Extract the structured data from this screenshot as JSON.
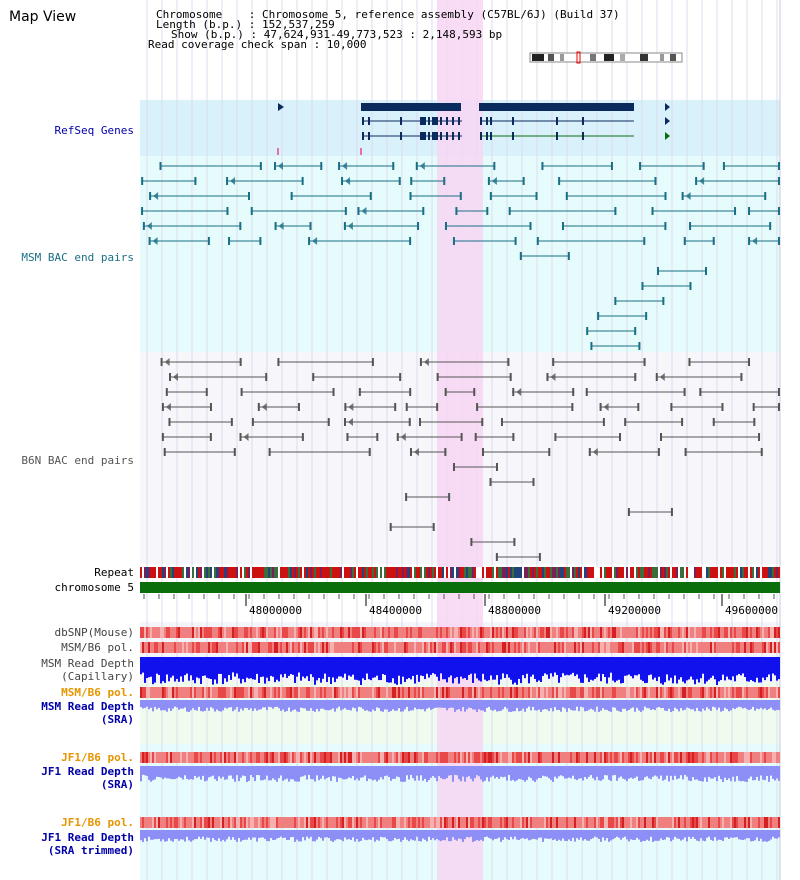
{
  "app": {
    "title": "Map View"
  },
  "info": {
    "chromosome": "Chromosome    : Chromosome 5, reference assembly (C57BL/6J) (Build 37)",
    "length": "Length (b.p.) : 152,537,259",
    "show": "Show (b.p.) : 47,624,931-49,773,523 : 2,148,593 bp",
    "coverage": "Read coverage check span : 10,000"
  },
  "tracks": {
    "refseq": "RefSeq Genes",
    "msm_bac": "MSM BAC end pairs",
    "b6n_bac": "B6N BAC end pairs",
    "repeat": "Repeat",
    "chromosome": "chromosome 5",
    "dbsnp": "dbSNP(Mouse)",
    "msm_b6_pol_1": "MSM/B6 pol.",
    "msm_read_depth_1": "MSM Read Depth",
    "capillary": "(Capillary)",
    "msm_b6_pol_2": "MSM/B6 pol.",
    "msm_read_depth_2": "MSM Read Depth",
    "sra_1": "(SRA)",
    "jf1_b6_pol_1": "JF1/B6 pol.",
    "jf1_read_depth_1": "JF1 Read Depth",
    "sra_2": "(SRA)",
    "jf1_b6_pol_2": "JF1/B6 pol.",
    "jf1_read_depth_2": "JF1 Read Depth",
    "sra_trimmed": "(SRA trimmed)"
  },
  "axis": {
    "ticks": [
      "48000000",
      "48400000",
      "48800000",
      "49200000",
      "49600000"
    ]
  },
  "colors": {
    "highlight": "#f7d6f3",
    "refseq_bg": "#d9f1fb",
    "msm_bg": "#e6fbfb",
    "grey_bg": "#f6f6fb",
    "gene": "#0b2a5e",
    "msm_pair": "#1a6f86",
    "b6n_pair": "#555555",
    "chromosome": "#0a6e0a",
    "label_blue": "#0000aa",
    "label_orange": "#e69500",
    "label_teal": "#1a6f86",
    "depth_blue": "#1111ee",
    "depth_light": "#8e8ef7"
  }
}
